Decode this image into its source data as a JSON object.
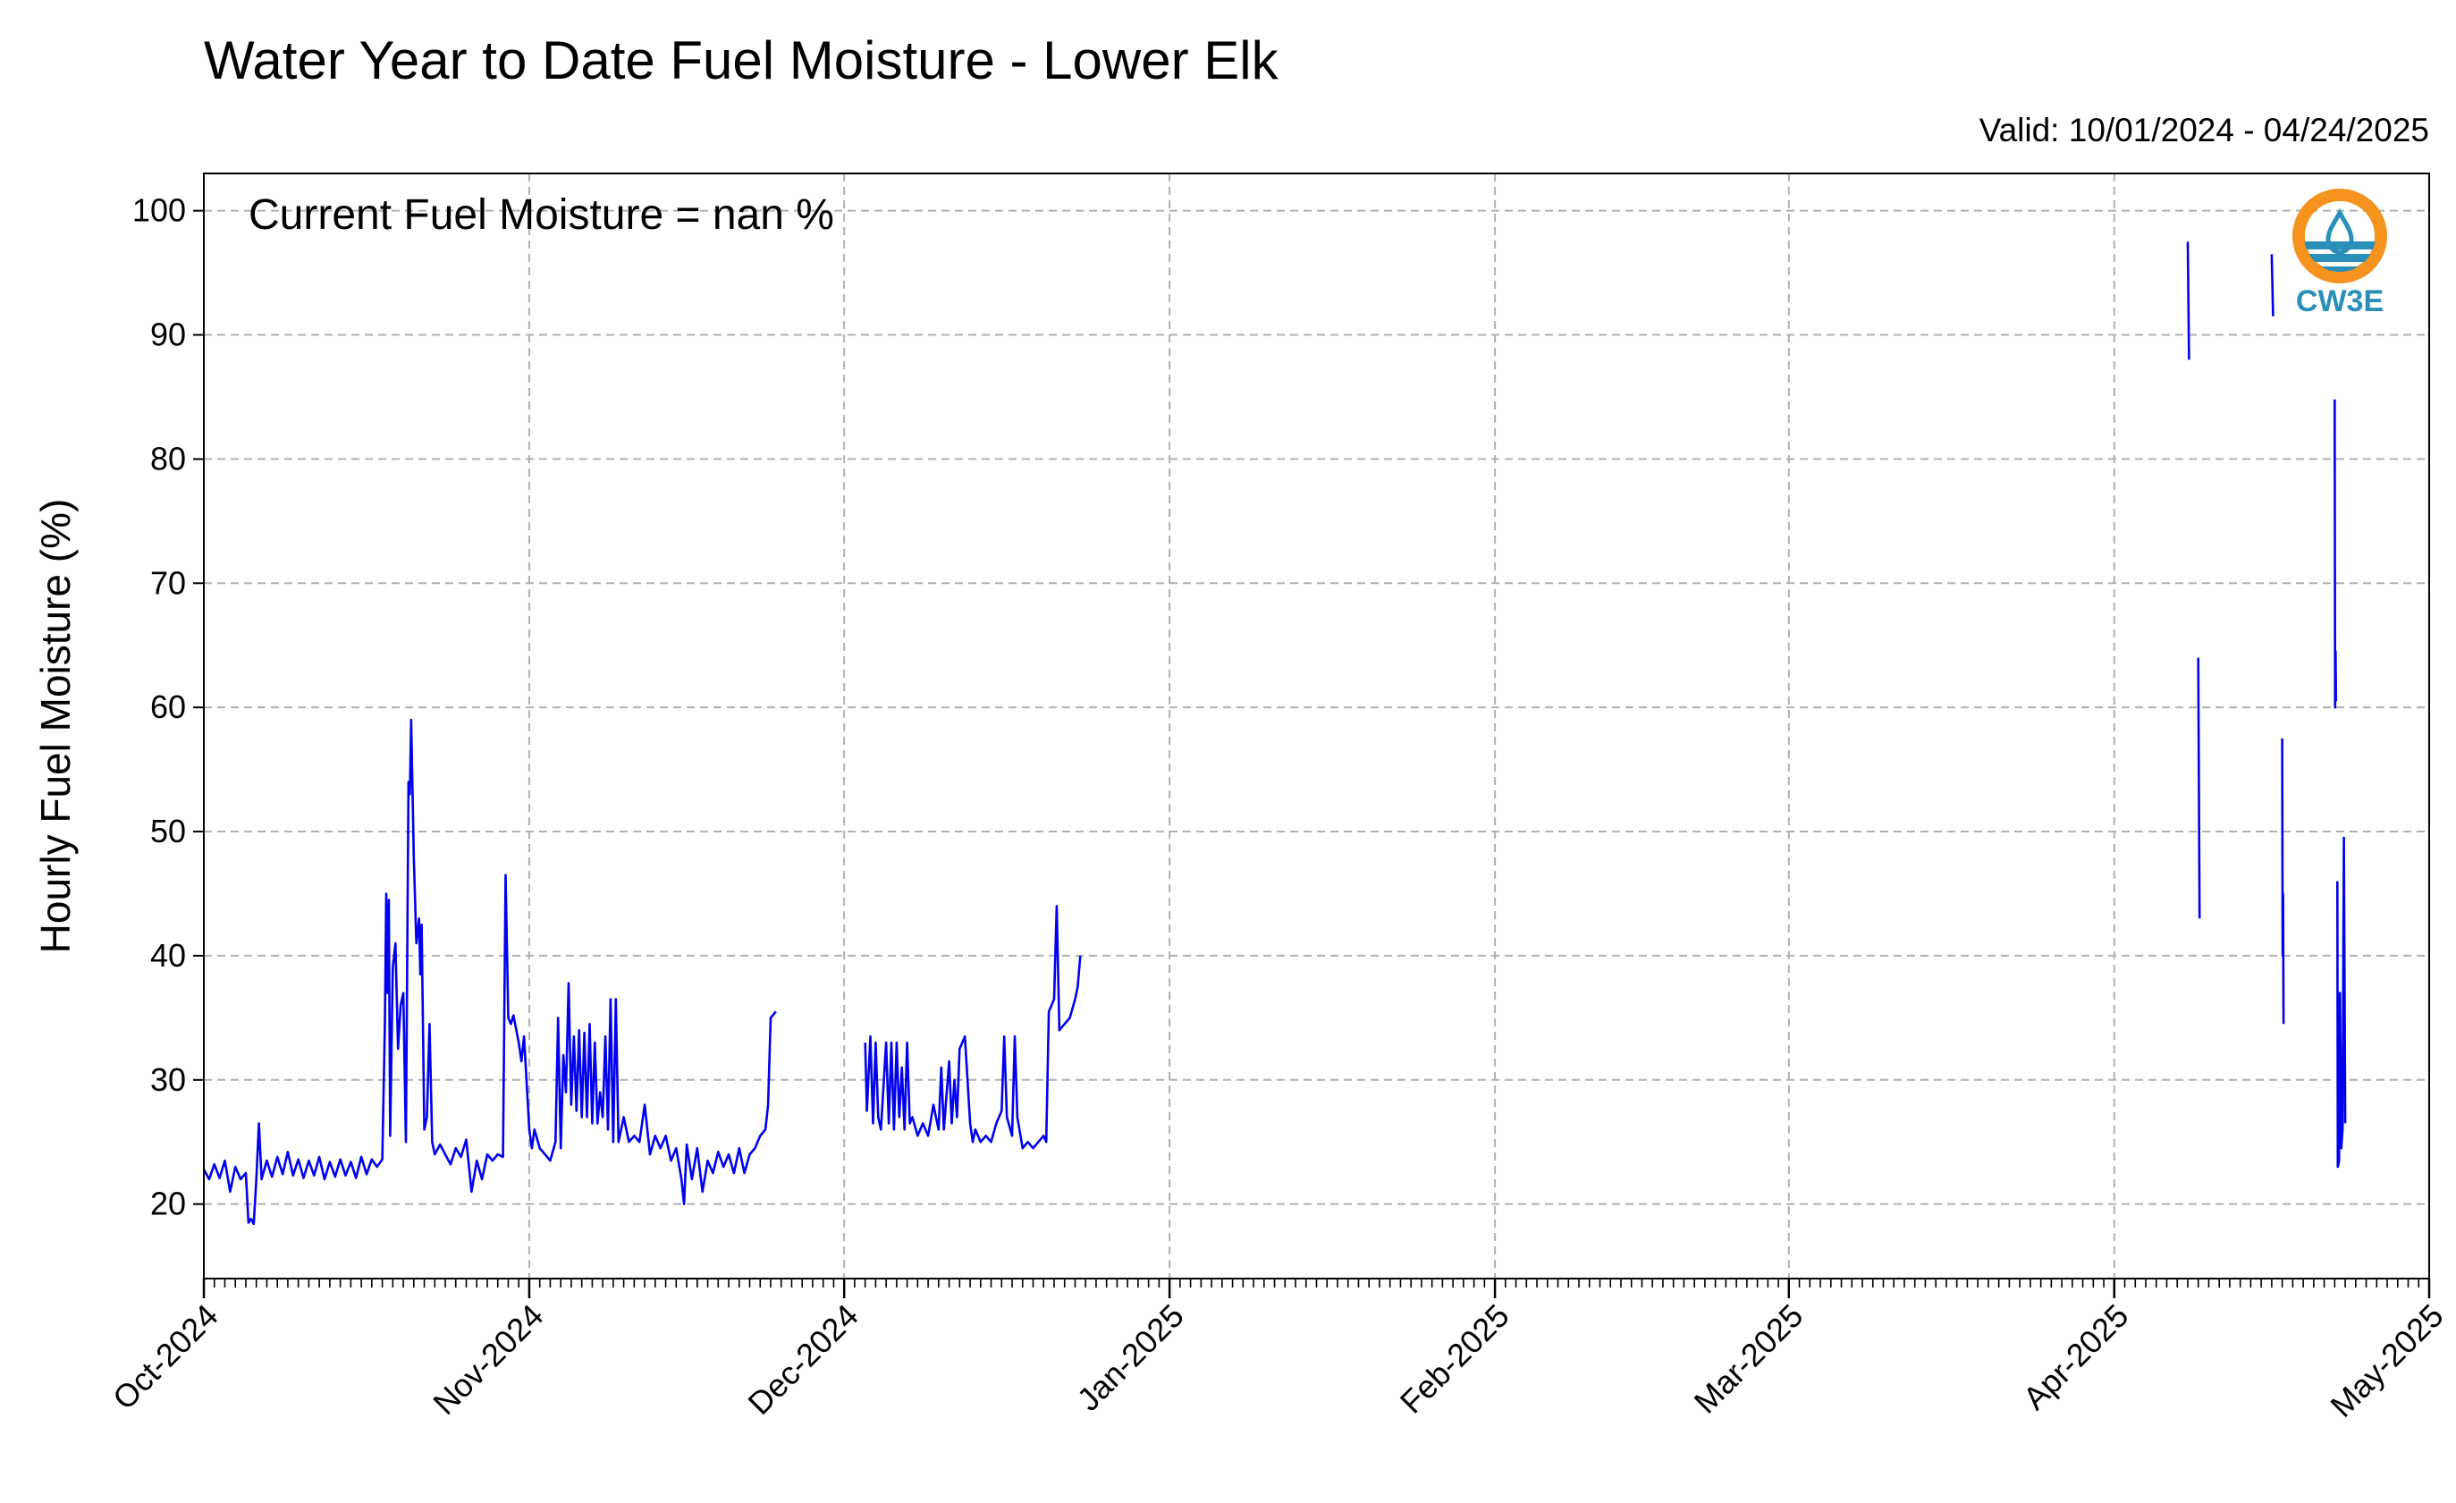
{
  "chart_data": {
    "type": "line",
    "title": "Water Year to Date Fuel Moisture - Lower Elk",
    "subtitle": "Valid: 10/01/2024 - 04/24/2025",
    "annotation": "Current Fuel Moisture = nan %",
    "xlabel": "",
    "ylabel": "Hourly Fuel Moisture (%)",
    "x_range": [
      "2024-10-01",
      "2025-05-01"
    ],
    "ylim": [
      14,
      103
    ],
    "y_ticks": [
      20,
      30,
      40,
      50,
      60,
      70,
      80,
      90,
      100
    ],
    "x_ticks": [
      {
        "date": "2024-10-01",
        "label": "Oct-2024"
      },
      {
        "date": "2024-11-01",
        "label": "Nov-2024"
      },
      {
        "date": "2024-12-01",
        "label": "Dec-2024"
      },
      {
        "date": "2025-01-01",
        "label": "Jan-2025"
      },
      {
        "date": "2025-02-01",
        "label": "Feb-2025"
      },
      {
        "date": "2025-03-01",
        "label": "Mar-2025"
      },
      {
        "date": "2025-04-01",
        "label": "Apr-2025"
      },
      {
        "date": "2025-05-01",
        "label": "May-2025"
      }
    ],
    "grid": true,
    "line_color": "#0000ee",
    "series": [
      {
        "segments": [
          [
            [
              "2024-10-01",
              22.8
            ],
            [
              "2024-10-01T12:00",
              22.0
            ],
            [
              "2024-10-02",
              23.2
            ],
            [
              "2024-10-02T12:00",
              22.1
            ],
            [
              "2024-10-03",
              23.5
            ],
            [
              "2024-10-03T12:00",
              21.0
            ],
            [
              "2024-10-04",
              23.0
            ],
            [
              "2024-10-04T12:00",
              22.0
            ],
            [
              "2024-10-05",
              22.5
            ],
            [
              "2024-10-05T06:00",
              18.5
            ],
            [
              "2024-10-05T12:00",
              18.8
            ],
            [
              "2024-10-05T18:00",
              18.4
            ],
            [
              "2024-10-06",
              22.0
            ],
            [
              "2024-10-06T06:00",
              26.5
            ],
            [
              "2024-10-06T12:00",
              22.0
            ],
            [
              "2024-10-07",
              23.5
            ],
            [
              "2024-10-07T12:00",
              22.2
            ],
            [
              "2024-10-08",
              23.8
            ],
            [
              "2024-10-08T12:00",
              22.4
            ],
            [
              "2024-10-09",
              24.2
            ],
            [
              "2024-10-09T12:00",
              22.3
            ],
            [
              "2024-10-10",
              23.6
            ],
            [
              "2024-10-10T12:00",
              22.1
            ],
            [
              "2024-10-11",
              23.5
            ],
            [
              "2024-10-11T12:00",
              22.3
            ],
            [
              "2024-10-12",
              23.8
            ],
            [
              "2024-10-12T12:00",
              22.0
            ],
            [
              "2024-10-13",
              23.4
            ],
            [
              "2024-10-13T12:00",
              22.2
            ],
            [
              "2024-10-14",
              23.6
            ],
            [
              "2024-10-14T12:00",
              22.3
            ],
            [
              "2024-10-15",
              23.4
            ],
            [
              "2024-10-15T12:00",
              22.1
            ],
            [
              "2024-10-16",
              23.8
            ],
            [
              "2024-10-16T12:00",
              22.4
            ],
            [
              "2024-10-17",
              23.6
            ],
            [
              "2024-10-17T12:00",
              23.0
            ],
            [
              "2024-10-18",
              23.6
            ],
            [
              "2024-10-18T06:00",
              34.5
            ],
            [
              "2024-10-18T09:00",
              45.0
            ],
            [
              "2024-10-18T12:00",
              37.0
            ],
            [
              "2024-10-18T15:00",
              44.5
            ],
            [
              "2024-10-18T18:00",
              25.5
            ],
            [
              "2024-10-19",
              39.0
            ],
            [
              "2024-10-19T06:00",
              41.0
            ],
            [
              "2024-10-19T12:00",
              32.5
            ],
            [
              "2024-10-19T18:00",
              36.0
            ],
            [
              "2024-10-20",
              37.0
            ],
            [
              "2024-10-20T06:00",
              25.0
            ],
            [
              "2024-10-20T12:00",
              54.0
            ],
            [
              "2024-10-20T15:00",
              53.0
            ],
            [
              "2024-10-20T18:00",
              59.0
            ],
            [
              "2024-10-21",
              48.0
            ],
            [
              "2024-10-21T06:00",
              41.0
            ],
            [
              "2024-10-21T12:00",
              43.0
            ],
            [
              "2024-10-21T15:00",
              38.5
            ],
            [
              "2024-10-21T18:00",
              42.5
            ],
            [
              "2024-10-22",
              26.0
            ],
            [
              "2024-10-22T06:00",
              27.0
            ],
            [
              "2024-10-22T12:00",
              34.5
            ],
            [
              "2024-10-22T18:00",
              25.0
            ],
            [
              "2024-10-23",
              24.0
            ],
            [
              "2024-10-23T12:00",
              24.8
            ],
            [
              "2024-10-24",
              24.0
            ],
            [
              "2024-10-24T12:00",
              23.2
            ],
            [
              "2024-10-25",
              24.5
            ],
            [
              "2024-10-25T12:00",
              23.8
            ],
            [
              "2024-10-26",
              25.2
            ],
            [
              "2024-10-26T12:00",
              21.0
            ],
            [
              "2024-10-27",
              23.5
            ],
            [
              "2024-10-27T12:00",
              22.0
            ],
            [
              "2024-10-28",
              24.0
            ],
            [
              "2024-10-28T12:00",
              23.5
            ],
            [
              "2024-10-29",
              24.0
            ],
            [
              "2024-10-29T12:00",
              23.8
            ],
            [
              "2024-10-29T18:00",
              46.5
            ],
            [
              "2024-10-30",
              35.0
            ],
            [
              "2024-10-30T06:00",
              34.5
            ],
            [
              "2024-10-30T12:00",
              35.2
            ],
            [
              "2024-10-31",
              33.0
            ],
            [
              "2024-10-31T06:00",
              31.5
            ],
            [
              "2024-10-31T12:00",
              33.5
            ],
            [
              "2024-11-01",
              26.0
            ],
            [
              "2024-11-01T06:00",
              24.5
            ],
            [
              "2024-11-01T12:00",
              26.0
            ],
            [
              "2024-11-02",
              24.5
            ],
            [
              "2024-11-02T12:00",
              24.0
            ],
            [
              "2024-11-03",
              23.5
            ],
            [
              "2024-11-03T12:00",
              25.0
            ],
            [
              "2024-11-03T18:00",
              35.0
            ],
            [
              "2024-11-04",
              24.5
            ],
            [
              "2024-11-04T06:00",
              32.0
            ],
            [
              "2024-11-04T12:00",
              29.0
            ],
            [
              "2024-11-04T18:00",
              37.8
            ],
            [
              "2024-11-05",
              28.0
            ],
            [
              "2024-11-05T06:00",
              33.5
            ],
            [
              "2024-11-05T12:00",
              27.5
            ],
            [
              "2024-11-05T18:00",
              34.0
            ],
            [
              "2024-11-06",
              27.0
            ],
            [
              "2024-11-06T06:00",
              33.8
            ],
            [
              "2024-11-06T12:00",
              27.0
            ],
            [
              "2024-11-06T18:00",
              34.5
            ],
            [
              "2024-11-07",
              26.5
            ],
            [
              "2024-11-07T06:00",
              33.0
            ],
            [
              "2024-11-07T12:00",
              26.5
            ],
            [
              "2024-11-07T18:00",
              29.0
            ],
            [
              "2024-11-08",
              27.0
            ],
            [
              "2024-11-08T06:00",
              33.5
            ],
            [
              "2024-11-08T12:00",
              26.0
            ],
            [
              "2024-11-08T18:00",
              36.5
            ],
            [
              "2024-11-09",
              25.0
            ],
            [
              "2024-11-09T06:00",
              36.5
            ],
            [
              "2024-11-09T12:00",
              25.0
            ],
            [
              "2024-11-10",
              27.0
            ],
            [
              "2024-11-10T12:00",
              25.0
            ],
            [
              "2024-11-11",
              25.5
            ],
            [
              "2024-11-11T12:00",
              25.0
            ],
            [
              "2024-11-12",
              28.0
            ],
            [
              "2024-11-12T12:00",
              24.0
            ],
            [
              "2024-11-13",
              25.5
            ],
            [
              "2024-11-13T12:00",
              24.5
            ],
            [
              "2024-11-14",
              25.5
            ],
            [
              "2024-11-14T12:00",
              23.5
            ],
            [
              "2024-11-15",
              24.5
            ],
            [
              "2024-11-15T12:00",
              22.0
            ],
            [
              "2024-11-15T18:00",
              20.0
            ],
            [
              "2024-11-16",
              24.8
            ],
            [
              "2024-11-16T12:00",
              22.0
            ],
            [
              "2024-11-17",
              24.5
            ],
            [
              "2024-11-17T12:00",
              21.0
            ],
            [
              "2024-11-18",
              23.5
            ],
            [
              "2024-11-18T12:00",
              22.5
            ],
            [
              "2024-11-19",
              24.2
            ],
            [
              "2024-11-19T12:00",
              23.0
            ],
            [
              "2024-11-20",
              24.0
            ],
            [
              "2024-11-20T12:00",
              22.5
            ],
            [
              "2024-11-21",
              24.5
            ],
            [
              "2024-11-21T12:00",
              22.5
            ],
            [
              "2024-11-22",
              24.0
            ],
            [
              "2024-11-22T12:00",
              24.5
            ],
            [
              "2024-11-23",
              25.5
            ],
            [
              "2024-11-23T12:00",
              26.0
            ],
            [
              "2024-11-23T18:00",
              28.0
            ],
            [
              "2024-11-24",
              35.0
            ],
            [
              "2024-11-24T12:00",
              35.5
            ]
          ],
          [
            [
              "2024-12-03",
              33.0
            ],
            [
              "2024-12-03T04:00",
              27.5
            ],
            [
              "2024-12-03T12:00",
              33.5
            ],
            [
              "2024-12-03T18:00",
              26.5
            ],
            [
              "2024-12-04",
              33.0
            ],
            [
              "2024-12-04T06:00",
              27.0
            ],
            [
              "2024-12-04T12:00",
              26.0
            ],
            [
              "2024-12-05",
              33.0
            ],
            [
              "2024-12-05T06:00",
              26.5
            ],
            [
              "2024-12-05T12:00",
              33.0
            ],
            [
              "2024-12-05T18:00",
              26.0
            ],
            [
              "2024-12-06",
              33.0
            ],
            [
              "2024-12-06T06:00",
              27.0
            ],
            [
              "2024-12-06T12:00",
              31.0
            ],
            [
              "2024-12-06T18:00",
              26.0
            ],
            [
              "2024-12-07",
              33.0
            ],
            [
              "2024-12-07T06:00",
              26.5
            ],
            [
              "2024-12-07T12:00",
              27.0
            ],
            [
              "2024-12-08",
              25.5
            ],
            [
              "2024-12-08T12:00",
              26.5
            ],
            [
              "2024-12-09",
              25.5
            ],
            [
              "2024-12-09T12:00",
              28.0
            ],
            [
              "2024-12-10",
              26.0
            ],
            [
              "2024-12-10T06:00",
              31.0
            ],
            [
              "2024-12-10T12:00",
              26.0
            ],
            [
              "2024-12-11",
              31.5
            ],
            [
              "2024-12-11T06:00",
              26.5
            ],
            [
              "2024-12-11T12:00",
              30.0
            ],
            [
              "2024-12-11T18:00",
              27.0
            ],
            [
              "2024-12-12",
              32.5
            ],
            [
              "2024-12-12T06:00",
              33.0
            ],
            [
              "2024-12-12T12:00",
              33.5
            ],
            [
              "2024-12-13",
              26.5
            ],
            [
              "2024-12-13T06:00",
              25.0
            ],
            [
              "2024-12-13T12:00",
              26.0
            ],
            [
              "2024-12-14",
              25.0
            ],
            [
              "2024-12-14T12:00",
              25.5
            ],
            [
              "2024-12-15",
              25.0
            ],
            [
              "2024-12-15T12:00",
              26.5
            ],
            [
              "2024-12-16",
              27.5
            ],
            [
              "2024-12-16T06:00",
              33.5
            ],
            [
              "2024-12-16T12:00",
              27.0
            ],
            [
              "2024-12-17",
              25.5
            ],
            [
              "2024-12-17T06:00",
              33.5
            ],
            [
              "2024-12-17T12:00",
              27.0
            ],
            [
              "2024-12-18",
              24.5
            ],
            [
              "2024-12-18T12:00",
              25.0
            ],
            [
              "2024-12-19",
              24.5
            ],
            [
              "2024-12-19T12:00",
              25.0
            ],
            [
              "2024-12-20",
              25.5
            ],
            [
              "2024-12-20T06:00",
              25.0
            ],
            [
              "2024-12-20T12:00",
              35.5
            ],
            [
              "2024-12-21",
              36.5
            ],
            [
              "2024-12-21T06:00",
              44.0
            ],
            [
              "2024-12-21T12:00",
              34.0
            ],
            [
              "2024-12-22",
              34.5
            ],
            [
              "2024-12-22T12:00",
              35.0
            ],
            [
              "2024-12-23",
              36.5
            ],
            [
              "2024-12-23T06:00",
              37.5
            ],
            [
              "2024-12-23T12:00",
              40.0
            ]
          ],
          [
            [
              "2025-04-08",
              97.5
            ],
            [
              "2025-04-08T03:00",
              88.0
            ]
          ],
          [
            [
              "2025-04-09",
              64.0
            ],
            [
              "2025-04-09T03:00",
              43.0
            ]
          ],
          [
            [
              "2025-04-16",
              96.5
            ],
            [
              "2025-04-16T03:00",
              91.5
            ]
          ],
          [
            [
              "2025-04-17",
              57.5
            ],
            [
              "2025-04-17T01:00",
              40.0
            ],
            [
              "2025-04-17T02:00",
              45.0
            ],
            [
              "2025-04-17T03:00",
              34.5
            ]
          ],
          [
            [
              "2025-04-22",
              84.8
            ],
            [
              "2025-04-22T01:00",
              60.0
            ],
            [
              "2025-04-22T02:00",
              64.5
            ],
            [
              "2025-04-22T03:00",
              60.5
            ]
          ],
          [
            [
              "2025-04-22T06:00",
              46.0
            ],
            [
              "2025-04-22T07:00",
              23.0
            ],
            [
              "2025-04-22T10:00",
              23.5
            ],
            [
              "2025-04-22T12:00",
              37.0
            ],
            [
              "2025-04-22T15:00",
              24.5
            ],
            [
              "2025-04-22T18:00",
              26.0
            ],
            [
              "2025-04-22T21:00",
              49.5
            ],
            [
              "2025-04-23",
              26.5
            ]
          ]
        ]
      }
    ]
  },
  "logo": {
    "text": "CW3E",
    "ring_color": "#f5931e",
    "wave_color": "#2a8fb8",
    "text_color": "#2a8fb8"
  }
}
